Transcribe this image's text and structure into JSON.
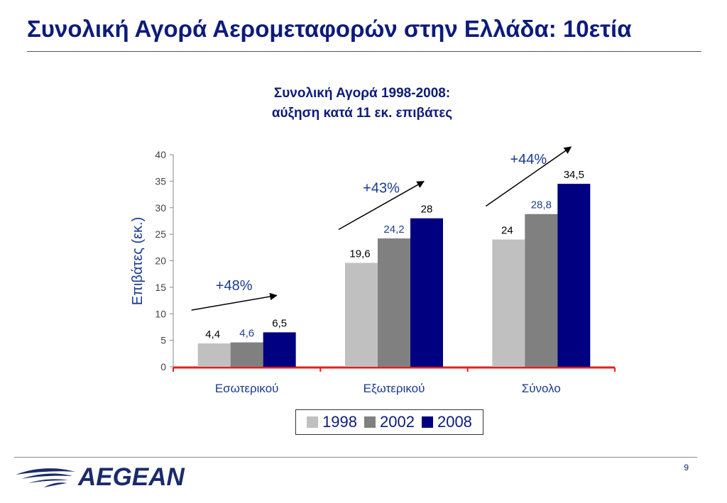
{
  "slide": {
    "title": "Συνολική Αγορά Αερομεταφορών στην Ελλάδα: 10ετία",
    "page_number": "9",
    "logo_text": "AEGEAN"
  },
  "chart_data": {
    "type": "bar",
    "title_line1": "Συνολική Αγορά 1998-2008:",
    "title_line2": "αύξηση κατά 11 εκ. επιβάτες",
    "ylabel": "Επιβάτες (εκ.)",
    "xlabel": "",
    "ylim": [
      0,
      40
    ],
    "yticks": [
      "0",
      "5",
      "10",
      "15",
      "20",
      "25",
      "30",
      "35",
      "40"
    ],
    "categories": [
      "Εσωτερικού",
      "Εξωτερικού",
      "Σύνολο"
    ],
    "series": [
      {
        "name": "1998",
        "color": "#c0c0c0",
        "label_color": "#000000",
        "values": [
          4.4,
          19.6,
          24
        ],
        "labels": [
          "4,4",
          "19,6",
          "24"
        ]
      },
      {
        "name": "2002",
        "color": "#808080",
        "label_color": "#1f3f8f",
        "values": [
          4.6,
          24.2,
          28.8
        ],
        "labels": [
          "4,6",
          "24,2",
          "28,8"
        ]
      },
      {
        "name": "2008",
        "color": "#000080",
        "label_color": "#000000",
        "values": [
          6.5,
          28,
          34.5
        ],
        "labels": [
          "6,5",
          "28",
          "34,5"
        ]
      }
    ],
    "growth_annotations": [
      "+48%",
      "+43%",
      "+44%"
    ],
    "legend_position": "bottom",
    "grid": false,
    "axis_color": "#e02020"
  }
}
